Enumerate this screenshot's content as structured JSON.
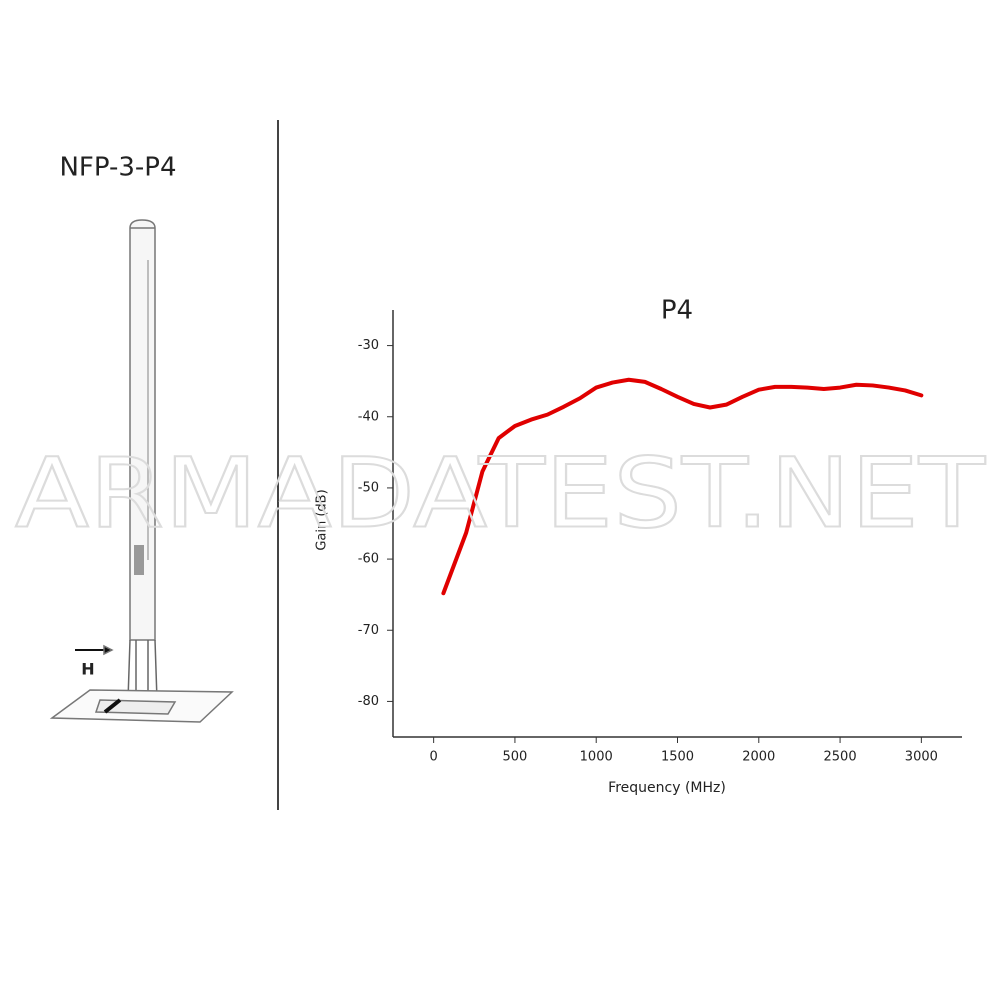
{
  "product_label": "NFP-3-P4",
  "field_label": "H",
  "watermark": "ARMADATEST.NET",
  "chart_data": {
    "type": "line",
    "title": "P4",
    "x_label": "Frequency (MHz)",
    "y_label": "Gain (dB)",
    "x": [
      60,
      200,
      300,
      400,
      500,
      600,
      700,
      800,
      900,
      1000,
      1100,
      1200,
      1300,
      1400,
      1500,
      1600,
      1700,
      1800,
      1900,
      2000,
      2100,
      2200,
      2300,
      2400,
      2500,
      2600,
      2700,
      2800,
      2900,
      3000
    ],
    "values": [
      -64.8,
      -56.3,
      -47.7,
      -43,
      -41.3,
      -40.4,
      -39.7,
      -38.6,
      -37.4,
      -35.9,
      -35.2,
      -34.8,
      -35.1,
      -36.1,
      -37.2,
      -38.2,
      -38.7,
      -38.3,
      -37.2,
      -36.2,
      -35.8,
      -35.8,
      -35.9,
      -36.1,
      -35.9,
      -35.5,
      -35.6,
      -35.9,
      -36.3,
      -37
    ],
    "color": "#e00000",
    "xlim": [
      -250,
      3250
    ],
    "xticks": [
      0,
      500,
      1000,
      1500,
      2000,
      2500,
      3000
    ],
    "ylim": [
      -85,
      -25
    ],
    "yticks": [
      -80,
      -70,
      -60,
      -50,
      -40,
      -30
    ]
  }
}
